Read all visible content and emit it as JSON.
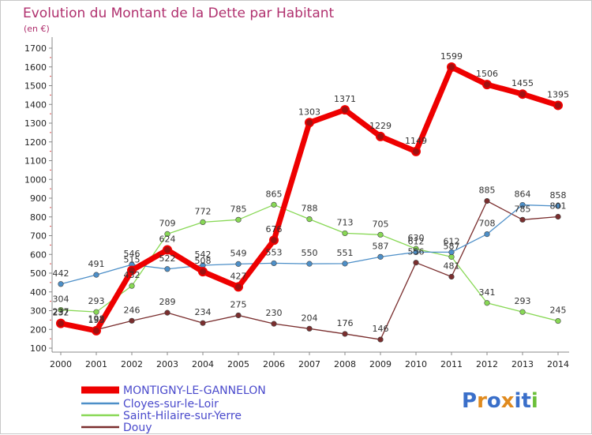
{
  "chart_data": {
    "type": "line",
    "title": "Evolution du Montant de la Dette par Habitant",
    "subtitle": "(en €)",
    "x": [
      "2000",
      "2001",
      "2002",
      "2003",
      "2004",
      "2005",
      "2006",
      "2007",
      "2008",
      "2009",
      "2010",
      "2011",
      "2012",
      "2013",
      "2014"
    ],
    "y_ticks": [
      "100",
      "200",
      "300",
      "400",
      "500",
      "600",
      "700",
      "800",
      "900",
      "1000",
      "1100",
      "1200",
      "1300",
      "1400",
      "1500",
      "1600",
      "1700"
    ],
    "ylim": [
      100,
      1700
    ],
    "grid": false,
    "legend_position": "bottom-left",
    "series": [
      {
        "name": "MONTIGNY-LE-GANNELON",
        "color": "#ee0000",
        "values": [
          232,
          193,
          515,
          624,
          508,
          427,
          676,
          1303,
          1371,
          1229,
          1149,
          1599,
          1506,
          1455,
          1395
        ],
        "labels": [
          "232",
          "193",
          "515",
          "624",
          "508",
          "427",
          "676",
          "1303",
          "1371",
          "1229",
          "1149",
          "1599",
          "1506",
          "1455",
          "1395"
        ]
      },
      {
        "name": "Cloyes-sur-le-Loir",
        "color": "#4d8fc8",
        "values": [
          442,
          491,
          546,
          522,
          542,
          549,
          553,
          550,
          551,
          587,
          612,
          612,
          708,
          864,
          858
        ],
        "labels": [
          "442",
          "491",
          "546",
          "522",
          "542",
          "549",
          "553",
          "550",
          "551",
          "587",
          "612",
          "612",
          "708",
          "864",
          "858"
        ]
      },
      {
        "name": "Saint-Hilaire-sur-Yerre",
        "color": "#88d855",
        "values": [
          304,
          293,
          432,
          709,
          772,
          785,
          865,
          788,
          713,
          705,
          630,
          587,
          341,
          293,
          245
        ],
        "labels": [
          "304",
          "293",
          "432",
          "709",
          "772",
          "785",
          "865",
          "788",
          "713",
          "705",
          "630",
          "587",
          "341",
          "293",
          "245"
        ]
      },
      {
        "name": "Douy",
        "color": "#7a2e2e",
        "values": [
          237,
          198,
          246,
          289,
          234,
          275,
          230,
          204,
          176,
          146,
          556,
          481,
          885,
          785,
          801
        ],
        "labels": [
          "237",
          "198",
          "246",
          "289",
          "234",
          "275",
          "230",
          "204",
          "176",
          "146",
          "556",
          "481",
          "885",
          "785",
          "801"
        ]
      }
    ]
  },
  "logo": {
    "text": "Proxiti"
  }
}
